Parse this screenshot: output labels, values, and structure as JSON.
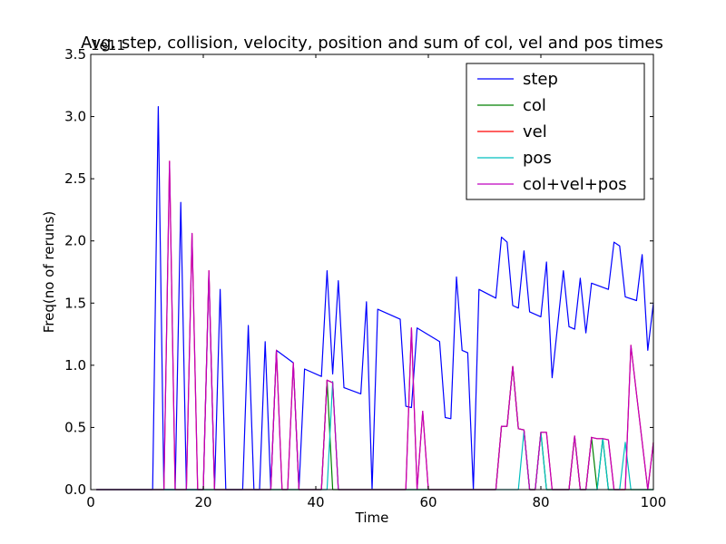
{
  "chart_data": {
    "type": "line",
    "title": "Avg. step, collision, velocity, position and sum of col, vel and pos times",
    "xlabel": "Time",
    "ylabel": "Freq(no of reruns)",
    "ylabel_scale": "1e11",
    "xlim": [
      0,
      100
    ],
    "ylim": [
      0,
      3.5
    ],
    "x_ticks": [
      "0",
      "20",
      "40",
      "60",
      "80",
      "100"
    ],
    "y_ticks": [
      "0.0",
      "0.5",
      "1.0",
      "1.5",
      "2.0",
      "2.5",
      "3.0",
      "3.5"
    ],
    "grid": false,
    "legend_position": "top-right",
    "series": [
      {
        "name": "step",
        "color": "#0000ff",
        "points": [
          [
            1,
            0
          ],
          [
            11,
            0
          ],
          [
            12,
            3.08
          ],
          [
            13,
            0
          ],
          [
            15,
            0
          ],
          [
            16,
            2.31
          ],
          [
            17,
            0
          ],
          [
            20,
            0
          ],
          [
            21,
            1.74
          ],
          [
            22,
            0
          ],
          [
            23,
            1.61
          ],
          [
            24,
            0
          ],
          [
            27,
            0
          ],
          [
            28,
            1.32
          ],
          [
            29,
            0
          ],
          [
            30,
            0
          ],
          [
            31,
            1.19
          ],
          [
            32,
            0
          ],
          [
            33,
            1.12
          ],
          [
            36,
            1.02
          ],
          [
            37,
            0
          ],
          [
            38,
            0.97
          ],
          [
            41,
            0.91
          ],
          [
            42,
            1.76
          ],
          [
            43,
            0.93
          ],
          [
            44,
            1.68
          ],
          [
            45,
            0.82
          ],
          [
            48,
            0.77
          ],
          [
            49,
            1.51
          ],
          [
            50,
            0
          ],
          [
            51,
            1.45
          ],
          [
            55,
            1.37
          ],
          [
            56,
            0.67
          ],
          [
            57,
            0.66
          ],
          [
            58,
            1.3
          ],
          [
            62,
            1.19
          ],
          [
            63,
            0.58
          ],
          [
            64,
            0.57
          ],
          [
            65,
            1.71
          ],
          [
            66,
            1.12
          ],
          [
            67,
            1.1
          ],
          [
            68,
            0
          ],
          [
            69,
            1.61
          ],
          [
            72,
            1.54
          ],
          [
            73,
            2.03
          ],
          [
            74,
            1.99
          ],
          [
            75,
            1.48
          ],
          [
            76,
            1.46
          ],
          [
            77,
            1.92
          ],
          [
            78,
            1.43
          ],
          [
            80,
            1.39
          ],
          [
            81,
            1.83
          ],
          [
            82,
            0.9
          ],
          [
            84,
            1.76
          ],
          [
            85,
            1.31
          ],
          [
            86,
            1.29
          ],
          [
            87,
            1.7
          ],
          [
            88,
            1.26
          ],
          [
            89,
            1.66
          ],
          [
            92,
            1.61
          ],
          [
            93,
            1.99
          ],
          [
            94,
            1.96
          ],
          [
            95,
            1.55
          ],
          [
            97,
            1.52
          ],
          [
            98,
            1.89
          ],
          [
            99,
            1.12
          ],
          [
            100,
            1.5
          ]
        ]
      },
      {
        "name": "col",
        "color": "#008000",
        "points": [
          [
            1,
            0
          ],
          [
            41,
            0
          ],
          [
            42,
            0.88
          ],
          [
            43,
            0
          ],
          [
            72,
            0
          ],
          [
            73,
            0.51
          ],
          [
            74,
            0.51
          ],
          [
            75,
            0.99
          ],
          [
            76,
            0.49
          ],
          [
            77,
            0.48
          ],
          [
            78,
            0
          ],
          [
            79,
            0
          ],
          [
            80,
            0.46
          ],
          [
            81,
            0
          ],
          [
            85,
            0
          ],
          [
            86,
            0.43
          ],
          [
            87,
            0
          ],
          [
            88,
            0
          ],
          [
            89,
            0.42
          ],
          [
            90,
            0
          ],
          [
            91,
            0.41
          ],
          [
            92,
            0
          ],
          [
            94,
            0
          ],
          [
            95,
            0
          ],
          [
            100,
            0
          ]
        ]
      },
      {
        "name": "vel",
        "color": "#ff0000",
        "points": [
          [
            1,
            0
          ],
          [
            13,
            0
          ],
          [
            14,
            2.64
          ],
          [
            15,
            0
          ],
          [
            17,
            0
          ],
          [
            18,
            2.06
          ],
          [
            19,
            0
          ],
          [
            20,
            0
          ],
          [
            21,
            1.76
          ],
          [
            22,
            0
          ],
          [
            32,
            0
          ],
          [
            33,
            1.12
          ],
          [
            34,
            0
          ],
          [
            35,
            0
          ],
          [
            36,
            1.02
          ],
          [
            37,
            0
          ],
          [
            41,
            0
          ],
          [
            42,
            0.88
          ],
          [
            43,
            0.86
          ],
          [
            44,
            0
          ],
          [
            56,
            0
          ],
          [
            57,
            1.3
          ],
          [
            58,
            0
          ],
          [
            59,
            0.63
          ],
          [
            60,
            0
          ],
          [
            72,
            0
          ],
          [
            73,
            0.51
          ],
          [
            74,
            0.51
          ],
          [
            75,
            0.99
          ],
          [
            76,
            0.49
          ],
          [
            77,
            0.48
          ],
          [
            78,
            0
          ],
          [
            79,
            0
          ],
          [
            80,
            0.46
          ],
          [
            81,
            0.46
          ],
          [
            82,
            0
          ],
          [
            85,
            0
          ],
          [
            86,
            0.43
          ],
          [
            87,
            0
          ],
          [
            88,
            0
          ],
          [
            89,
            0.42
          ],
          [
            90,
            0.41
          ],
          [
            91,
            0.41
          ],
          [
            92,
            0.4
          ],
          [
            93,
            0
          ],
          [
            94,
            0
          ],
          [
            95,
            0
          ],
          [
            96,
            1.16
          ],
          [
            97,
            0.77
          ],
          [
            99,
            0
          ],
          [
            100,
            0.38
          ]
        ]
      },
      {
        "name": "pos",
        "color": "#00bfbf",
        "points": [
          [
            1,
            0
          ],
          [
            41,
            0
          ],
          [
            42,
            0
          ],
          [
            43,
            0.87
          ],
          [
            44,
            0
          ],
          [
            76,
            0
          ],
          [
            77,
            0.47
          ],
          [
            78,
            0
          ],
          [
            79,
            0
          ],
          [
            80,
            0.46
          ],
          [
            81,
            0
          ],
          [
            89,
            0
          ],
          [
            90,
            0
          ],
          [
            91,
            0.41
          ],
          [
            92,
            0
          ],
          [
            94,
            0
          ],
          [
            95,
            0.38
          ],
          [
            96,
            0
          ],
          [
            100,
            0
          ]
        ]
      },
      {
        "name": "col+vel+pos",
        "color": "#bf00bf",
        "points": [
          [
            1,
            0
          ],
          [
            13,
            0
          ],
          [
            14,
            2.64
          ],
          [
            15,
            0
          ],
          [
            17,
            0
          ],
          [
            18,
            2.06
          ],
          [
            19,
            0
          ],
          [
            20,
            0
          ],
          [
            21,
            1.76
          ],
          [
            22,
            0
          ],
          [
            32,
            0
          ],
          [
            33,
            1.12
          ],
          [
            34,
            0
          ],
          [
            35,
            0
          ],
          [
            36,
            1.02
          ],
          [
            37,
            0
          ],
          [
            41,
            0
          ],
          [
            42,
            0.88
          ],
          [
            43,
            0.86
          ],
          [
            44,
            0
          ],
          [
            56,
            0
          ],
          [
            57,
            1.3
          ],
          [
            58,
            0
          ],
          [
            59,
            0.63
          ],
          [
            60,
            0
          ],
          [
            72,
            0
          ],
          [
            73,
            0.51
          ],
          [
            74,
            0.51
          ],
          [
            75,
            0.99
          ],
          [
            76,
            0.49
          ],
          [
            77,
            0.48
          ],
          [
            78,
            0
          ],
          [
            79,
            0
          ],
          [
            80,
            0.46
          ],
          [
            81,
            0.46
          ],
          [
            82,
            0
          ],
          [
            85,
            0
          ],
          [
            86,
            0.43
          ],
          [
            87,
            0
          ],
          [
            88,
            0
          ],
          [
            89,
            0.42
          ],
          [
            90,
            0.41
          ],
          [
            91,
            0.41
          ],
          [
            92,
            0.4
          ],
          [
            93,
            0
          ],
          [
            94,
            0
          ],
          [
            95,
            0
          ],
          [
            96,
            1.16
          ],
          [
            97,
            0.77
          ],
          [
            99,
            0
          ],
          [
            100,
            0.38
          ]
        ]
      }
    ]
  }
}
